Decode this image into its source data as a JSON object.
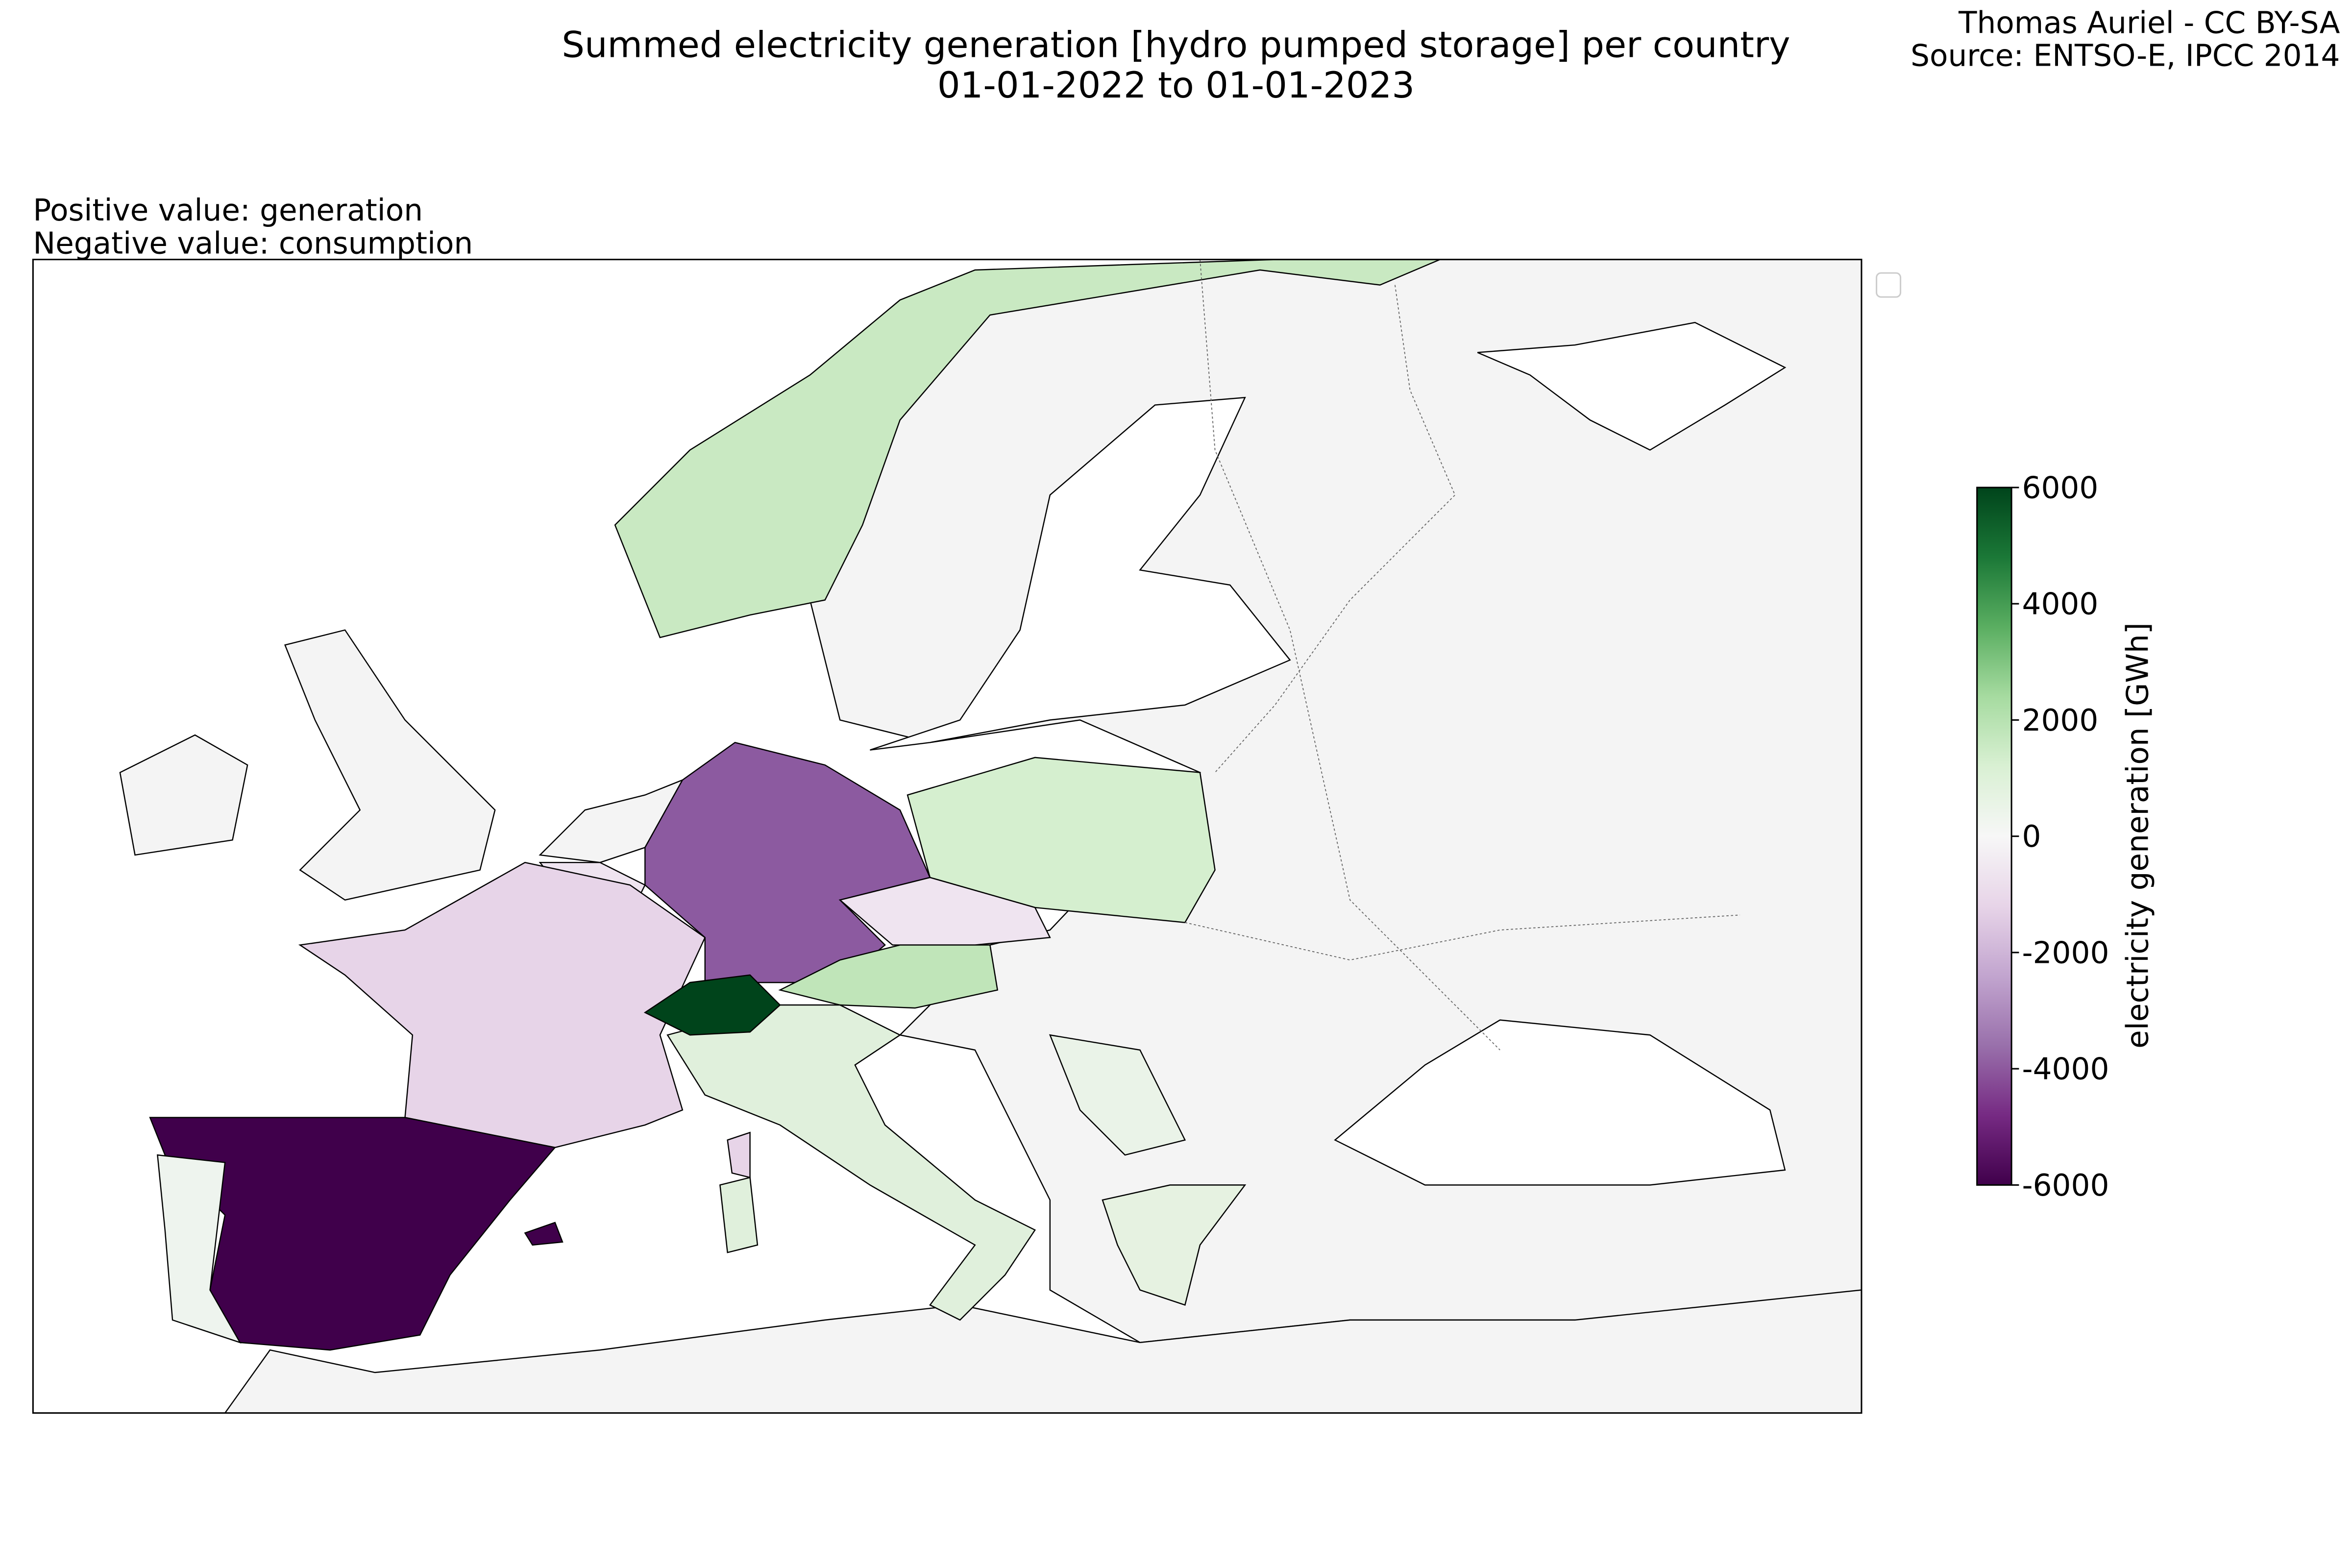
{
  "header": {
    "title": [
      "Summed electricity generation [hydro pumped storage] per country",
      "01-01-2022 to 01-01-2023"
    ],
    "attribution": [
      "Thomas Auriel - CC BY-SA",
      "Source: ENTSO-E, IPCC 2014"
    ],
    "note": [
      "Positive value: generation",
      "Negative value: consumption"
    ]
  },
  "colorbar": {
    "label": "electricity generation [GWh]",
    "lim": [
      -6000,
      6000
    ],
    "ticks": [
      -6000,
      -4000,
      -2000,
      0,
      2000,
      4000,
      6000
    ]
  }
}
